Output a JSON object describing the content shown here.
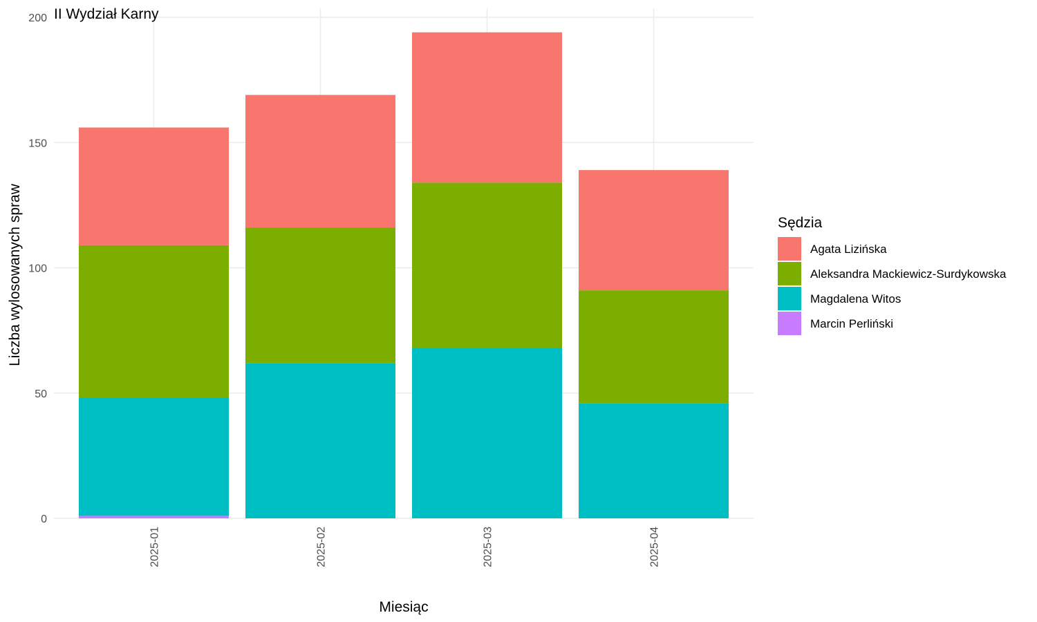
{
  "chart_data": {
    "type": "bar",
    "stacked": true,
    "title": "II Wydział Karny",
    "xlabel": "Miesiąc",
    "ylabel": "Liczba wylosowanych spraw",
    "ylim": [
      0,
      200
    ],
    "yticks": [
      0,
      50,
      100,
      150,
      200
    ],
    "grid": true,
    "legend_title": "Sędzia",
    "legend_position": "right",
    "categories": [
      "2025-01",
      "2025-02",
      "2025-03",
      "2025-04"
    ],
    "series": [
      {
        "name": "Marcin Perliński",
        "color": "#C77CFF",
        "values": [
          1,
          0,
          0,
          0
        ]
      },
      {
        "name": "Magdalena Witos",
        "color": "#00BFC4",
        "values": [
          47,
          62,
          68,
          46
        ]
      },
      {
        "name": "Aleksandra Mackiewicz-Surdykowska",
        "color": "#7CAE00",
        "values": [
          61,
          54,
          66,
          45
        ]
      },
      {
        "name": "Agata Lizińska",
        "color": "#F8766D",
        "values": [
          47,
          53,
          60,
          48
        ]
      }
    ],
    "legend_order": [
      "Agata Lizińska",
      "Aleksandra Mackiewicz-Surdykowska",
      "Magdalena Witos",
      "Marcin Perliński"
    ]
  }
}
